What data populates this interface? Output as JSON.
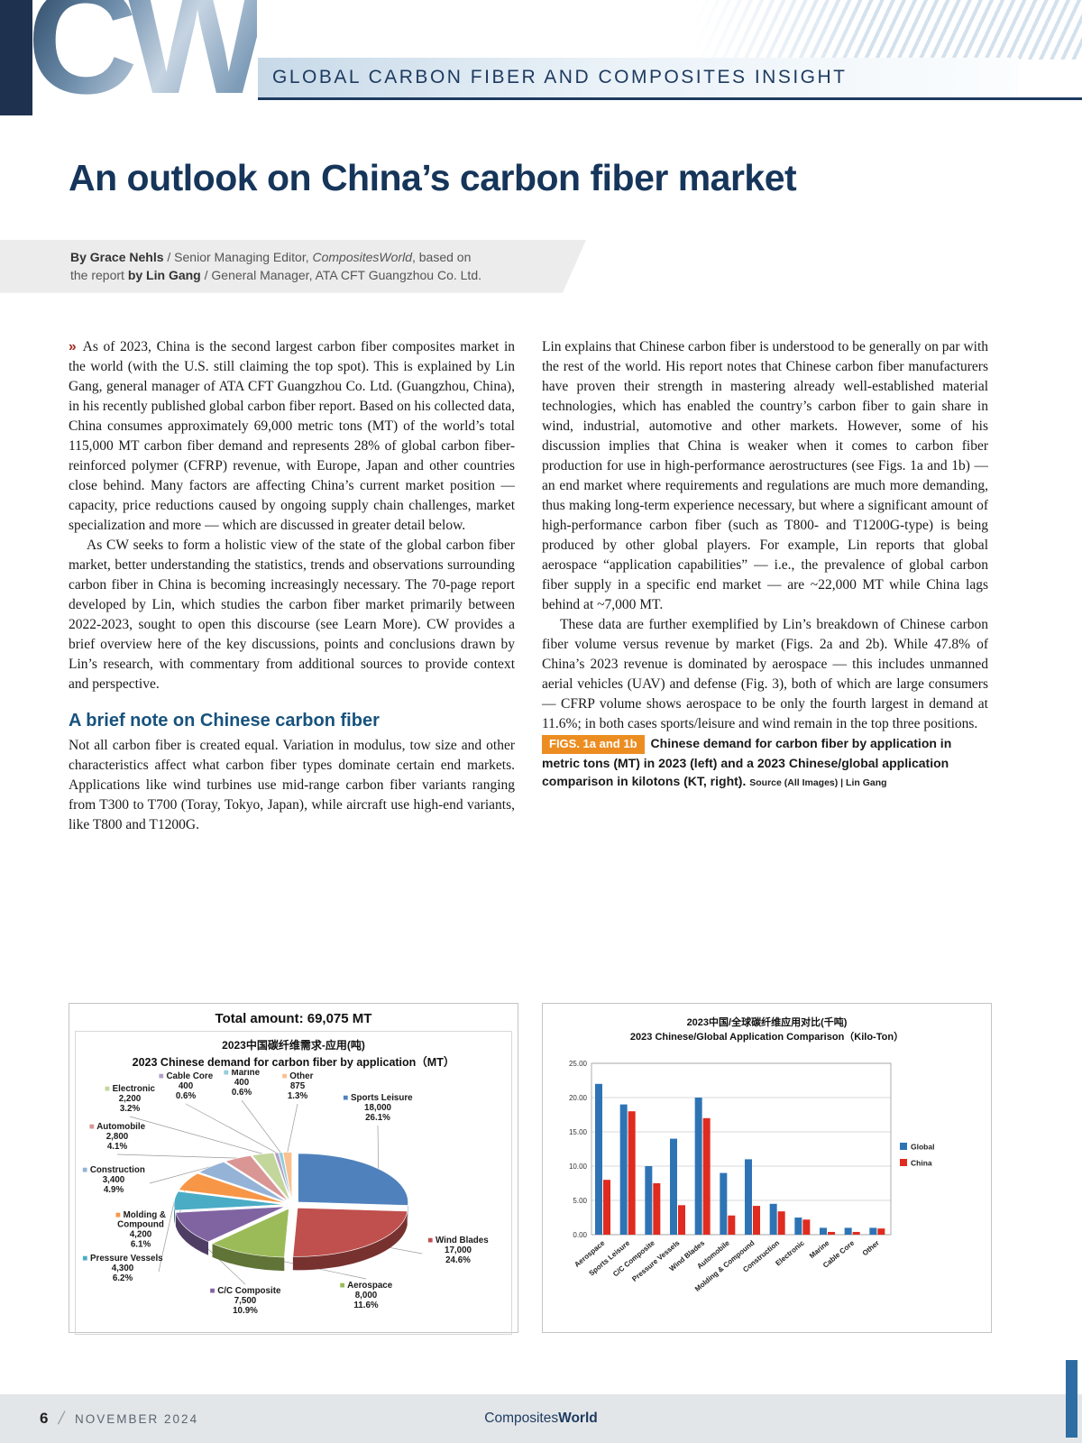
{
  "page": {
    "header": {
      "logo_text": "CW",
      "banner": "GLOBAL CARBON FIBER AND COMPOSITES INSIGHT"
    },
    "title": "An outlook on China’s carbon fiber market",
    "byline": {
      "by": "By Grace Nehls",
      "role1": " / Senior Managing Editor, ",
      "brand": "CompositesWorld",
      "tail1": ", based on",
      "lead2": "the report ",
      "by2": "by Lin Gang",
      "role2": " / General Manager, ATA CFT Guangzhou Co. Ltd."
    },
    "lead_chevron": "»",
    "col1": {
      "p1": "As of 2023, China is the second largest carbon fiber composites market in the world (with the U.S. still claiming the top spot). This is explained by Lin Gang, general manager of ATA CFT Guangzhou Co. Ltd. (Guangzhou, China), in his recently published global carbon fiber report. Based on his collected data, China consumes approximately 69,000 metric tons (MT) of the world’s total 115,000 MT carbon fiber demand and represents 28% of global carbon fiber-reinforced polymer (CFRP) revenue, with Europe, Japan and other countries close behind. Many factors are affecting China’s current market position — capacity, price reductions caused by ongoing supply chain challenges, market specialization and more — which are discussed in greater detail below.",
      "p2": "As CW seeks to form a holistic view of the state of the global carbon fiber market, better understanding the statistics, trends and observations surrounding carbon fiber in China is becoming increasingly necessary. The 70-page report developed by Lin, which studies the carbon fiber market primarily between 2022-2023, sought to open this discourse (see Learn More). CW provides a brief overview here of the key discussions, points and conclusions drawn by Lin’s research, with commentary from additional sources to provide context and perspective.",
      "heading": "A brief note on Chinese carbon fiber",
      "p3": "Not all carbon fiber is created equal. Variation in modulus, tow size and other characteristics affect what carbon fiber types dominate certain end markets. Applications like wind turbines use mid-range carbon fiber variants ranging from T300 to T700 (Toray, Tokyo, Japan), while aircraft use high-end variants, like T800 and T1200G."
    },
    "col2": {
      "p1": "Lin explains that Chinese carbon fiber is understood to be generally on par with the rest of the world. His report notes that Chinese carbon fiber manufacturers have proven their strength in mastering already well-established material technologies, which has enabled the country’s carbon fiber to gain share in wind, industrial, automotive and other markets. However, some of his discussion implies that China is weaker when it comes to carbon fiber production for use in high-performance aerostructures (see Figs. 1a and 1b) — an end market where requirements and regulations are much more demanding, thus making long-term experience necessary, but where a significant amount of high-performance carbon fiber (such as T800- and T1200G-type) is being produced by other global players. For example, Lin reports that global aerospace “application capabilities” — i.e., the prevalence of global carbon fiber supply in a specific end market — are ~22,000 MT while China lags behind at ~7,000 MT.",
      "p2": "These data are further exemplified by Lin’s breakdown of Chinese carbon fiber volume versus revenue by market (Figs. 2a and 2b). While 47.8% of China’s 2023 revenue is dominated by aerospace — this includes unmanned aerial vehicles (UAV) and defense (Fig. 3), both of which are large consumers — CFRP volume shows aerospace to be only the fourth largest in demand at 11.6%; in both cases sports/leisure and wind remain in the top three positions."
    },
    "caption": {
      "badge": "FIGS. 1a and 1b",
      "text": "Chinese demand for carbon fiber by application in metric tons (MT) in 2023 (left) and a 2023 Chinese/global application comparison in kilotons (KT, right). ",
      "source": "Source (All Images) | Lin Gang"
    },
    "footer": {
      "page_number": "6",
      "separator": "/",
      "issue": "NOVEMBER 2024",
      "brand_regular": "Composites",
      "brand_bold": "World"
    }
  },
  "chart_data": [
    {
      "type": "pie",
      "total_label": "Total amount: 69,075 MT",
      "title_cn": "2023中国碳纤维需求-应用(吨)",
      "title_en": "2023 Chinese demand for carbon fiber by application（MT）",
      "categories": [
        "Sports Leisure",
        "Wind Blades",
        "Aerospace",
        "C/C Composite",
        "Pressure Vessels",
        "Molding & Compound",
        "Construction",
        "Automobile",
        "Electronic",
        "Cable Core",
        "Marine",
        "Other"
      ],
      "values": [
        18000,
        17000,
        8000,
        7500,
        4300,
        4200,
        3400,
        2800,
        2200,
        400,
        400,
        875
      ],
      "value_labels": [
        "18,000",
        "17,000",
        "8,000",
        "7,500",
        "4,300",
        "4,200",
        "3,400",
        "2,800",
        "2,200",
        "400",
        "400",
        "875"
      ],
      "pct_labels": [
        "26.1%",
        "24.6%",
        "11.6%",
        "10.9%",
        "6.2%",
        "6.1%",
        "4.9%",
        "4.1%",
        "3.2%",
        "0.6%",
        "0.6%",
        "1.3%"
      ],
      "colors": [
        "#4F81BD",
        "#C0504D",
        "#9BBB59",
        "#8064A2",
        "#4BACC6",
        "#F79646",
        "#95B3D7",
        "#D99694",
        "#C3D69B",
        "#B3A2C7",
        "#92CDDC",
        "#FAC090"
      ],
      "total_value": 69075
    },
    {
      "type": "bar",
      "title_cn": "2023中国/全球碳纤维应用对比(千吨)",
      "title_en": "2023 Chinese/Global Application Comparison（Kilo-Ton）",
      "categories": [
        "Aerospace",
        "Sports Leisure",
        "C/C Composite",
        "Pressure Vessels",
        "Wind Blades",
        "Automobile",
        "Molding & Compound",
        "Construction",
        "Electronic",
        "Marine",
        "Cable Core",
        "Other"
      ],
      "series": [
        {
          "name": "Global",
          "color": "#2E74B5",
          "values": [
            22,
            19,
            10,
            14,
            20,
            9,
            11,
            4.5,
            2.5,
            1,
            1,
            1
          ]
        },
        {
          "name": "China",
          "color": "#E02B20",
          "values": [
            8,
            18,
            7.5,
            4.3,
            17,
            2.8,
            4.2,
            3.4,
            2.2,
            0.4,
            0.4,
            0.9
          ]
        }
      ],
      "ylim": [
        0,
        25
      ],
      "ytick_labels": [
        "0.00",
        "5.00",
        "10.00",
        "15.00",
        "20.00",
        "25.00"
      ],
      "grid": true,
      "legend_position": "right"
    }
  ]
}
